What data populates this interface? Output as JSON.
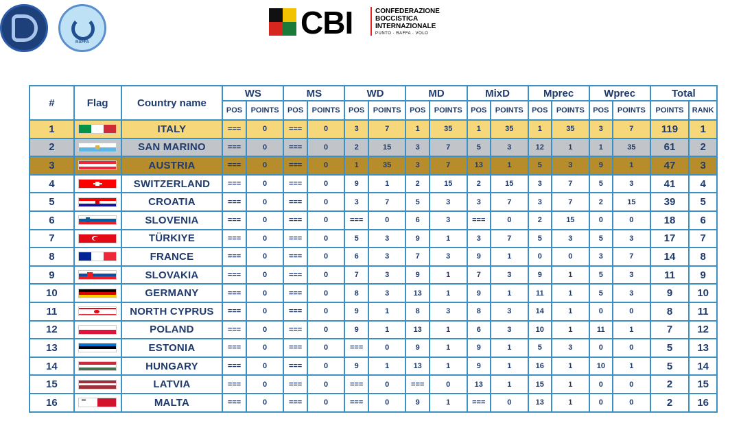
{
  "header": {
    "logo1_name": "",
    "logo1_text": "",
    "logo2_text": "RAFFA",
    "cbi_title": "CBI",
    "cbi_line1": "CONFEDERAZIONE",
    "cbi_line2": "BOCCISTICA",
    "cbi_line3": "INTERNAZIONALE",
    "cbi_line4": "PUNTO · RAFFA · VOLO"
  },
  "table": {
    "col_rank": "#",
    "col_flag": "Flag",
    "col_country": "Country name",
    "groups": [
      "WS",
      "MS",
      "WD",
      "MD",
      "MixD",
      "Mprec",
      "Wprec",
      "Total"
    ],
    "sub_pos": "POS",
    "sub_points": "POINTS",
    "sub_rank": "RANK",
    "rows": [
      {
        "n": "1",
        "country": "ITALY",
        "v": [
          "===",
          "0",
          "===",
          "0",
          "3",
          "7",
          "1",
          "35",
          "1",
          "35",
          "1",
          "35",
          "3",
          "7"
        ],
        "total": "119",
        "rank": "1",
        "style": "gold",
        "flag": "it"
      },
      {
        "n": "2",
        "country": "SAN MARINO",
        "v": [
          "===",
          "0",
          "===",
          "0",
          "2",
          "15",
          "3",
          "7",
          "5",
          "3",
          "12",
          "1",
          "1",
          "35"
        ],
        "total": "61",
        "rank": "2",
        "style": "silver",
        "flag": "sm"
      },
      {
        "n": "3",
        "country": "AUSTRIA",
        "v": [
          "===",
          "0",
          "===",
          "0",
          "1",
          "35",
          "3",
          "7",
          "13",
          "1",
          "5",
          "3",
          "9",
          "1"
        ],
        "total": "47",
        "rank": "3",
        "style": "bronze",
        "flag": "at"
      },
      {
        "n": "4",
        "country": "SWITZERLAND",
        "v": [
          "===",
          "0",
          "===",
          "0",
          "9",
          "1",
          "2",
          "15",
          "2",
          "15",
          "3",
          "7",
          "5",
          "3"
        ],
        "total": "41",
        "rank": "4",
        "style": "",
        "flag": "ch"
      },
      {
        "n": "5",
        "country": "CROATIA",
        "v": [
          "===",
          "0",
          "===",
          "0",
          "3",
          "7",
          "5",
          "3",
          "3",
          "7",
          "3",
          "7",
          "2",
          "15"
        ],
        "total": "39",
        "rank": "5",
        "style": "",
        "flag": "hr"
      },
      {
        "n": "6",
        "country": "SLOVENIA",
        "v": [
          "===",
          "0",
          "===",
          "0",
          "===",
          "0",
          "6",
          "3",
          "===",
          "0",
          "2",
          "15",
          "0",
          "0"
        ],
        "total": "18",
        "rank": "6",
        "style": "",
        "flag": "si"
      },
      {
        "n": "7",
        "country": "TÜRKIYE",
        "v": [
          "===",
          "0",
          "===",
          "0",
          "5",
          "3",
          "9",
          "1",
          "3",
          "7",
          "5",
          "3",
          "5",
          "3"
        ],
        "total": "17",
        "rank": "7",
        "style": "",
        "flag": "tr"
      },
      {
        "n": "8",
        "country": "FRANCE",
        "v": [
          "===",
          "0",
          "===",
          "0",
          "6",
          "3",
          "7",
          "3",
          "9",
          "1",
          "0",
          "0",
          "3",
          "7"
        ],
        "total": "14",
        "rank": "8",
        "style": "",
        "flag": "fr"
      },
      {
        "n": "9",
        "country": "SLOVAKIA",
        "v": [
          "===",
          "0",
          "===",
          "0",
          "7",
          "3",
          "9",
          "1",
          "7",
          "3",
          "9",
          "1",
          "5",
          "3"
        ],
        "total": "11",
        "rank": "9",
        "style": "",
        "flag": "sk"
      },
      {
        "n": "10",
        "country": "GERMANY",
        "v": [
          "===",
          "0",
          "===",
          "0",
          "8",
          "3",
          "13",
          "1",
          "9",
          "1",
          "11",
          "1",
          "5",
          "3"
        ],
        "total": "9",
        "rank": "10",
        "style": "",
        "flag": "de"
      },
      {
        "n": "11",
        "country": "NORTH CYPRUS",
        "v": [
          "===",
          "0",
          "===",
          "0",
          "9",
          "1",
          "8",
          "3",
          "8",
          "3",
          "14",
          "1",
          "0",
          "0"
        ],
        "total": "8",
        "rank": "11",
        "style": "",
        "flag": "nc"
      },
      {
        "n": "12",
        "country": "POLAND",
        "v": [
          "===",
          "0",
          "===",
          "0",
          "9",
          "1",
          "13",
          "1",
          "6",
          "3",
          "10",
          "1",
          "11",
          "1"
        ],
        "total": "7",
        "rank": "12",
        "style": "",
        "flag": "pl"
      },
      {
        "n": "13",
        "country": "ESTONIA",
        "v": [
          "===",
          "0",
          "===",
          "0",
          "===",
          "0",
          "9",
          "1",
          "9",
          "1",
          "5",
          "3",
          "0",
          "0"
        ],
        "total": "5",
        "rank": "13",
        "style": "",
        "flag": "ee"
      },
      {
        "n": "14",
        "country": "HUNGARY",
        "v": [
          "===",
          "0",
          "===",
          "0",
          "9",
          "1",
          "13",
          "1",
          "9",
          "1",
          "16",
          "1",
          "10",
          "1"
        ],
        "total": "5",
        "rank": "14",
        "style": "",
        "flag": "hu"
      },
      {
        "n": "15",
        "country": "LATVIA",
        "v": [
          "===",
          "0",
          "===",
          "0",
          "===",
          "0",
          "===",
          "0",
          "13",
          "1",
          "15",
          "1",
          "0",
          "0"
        ],
        "total": "2",
        "rank": "15",
        "style": "",
        "flag": "lv"
      },
      {
        "n": "16",
        "country": "MALTA",
        "v": [
          "===",
          "0",
          "===",
          "0",
          "===",
          "0",
          "9",
          "1",
          "===",
          "0",
          "13",
          "1",
          "0",
          "0"
        ],
        "total": "2",
        "rank": "16",
        "style": "",
        "flag": "mt"
      }
    ]
  },
  "colors": {
    "gold": "#f6d77a",
    "silver": "#c1c4c8",
    "bronze": "#b78c2a",
    "border": "#3a8fc4",
    "text": "#1f3b6e"
  }
}
